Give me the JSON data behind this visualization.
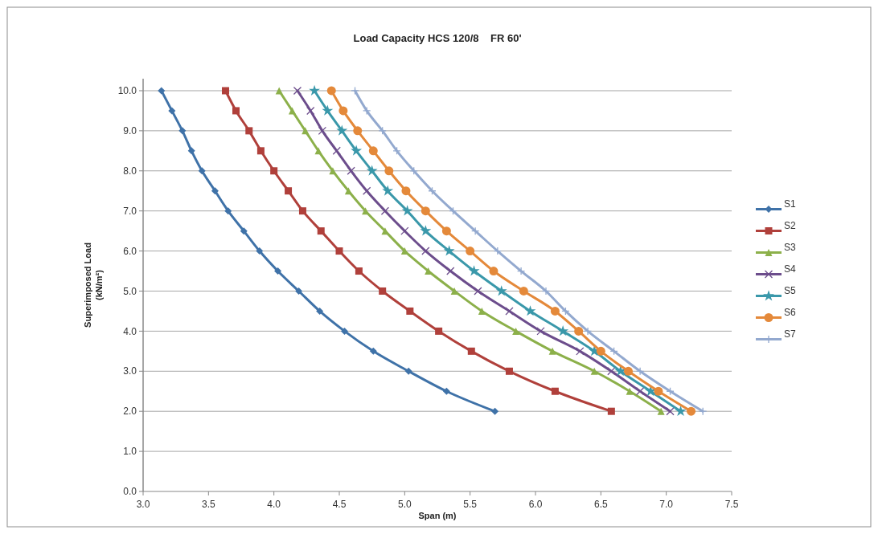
{
  "chart_data": {
    "type": "line",
    "title": "Load Capacity HCS 120/8    FR 60'",
    "xlabel": "Span (m)",
    "ylabel": "Superimposed Load\n(kN/m²)",
    "xlim": [
      3.0,
      7.5
    ],
    "xticks": [
      {
        "value": 3,
        "label": "3.0"
      },
      {
        "value": 3.5,
        "label": "3.5"
      },
      {
        "value": 4,
        "label": "4.0"
      },
      {
        "value": 4.5,
        "label": "4.5"
      },
      {
        "value": 5,
        "label": "5.0"
      },
      {
        "value": 5.5,
        "label": "5.5"
      },
      {
        "value": 6,
        "label": "6.0"
      },
      {
        "value": 6.5,
        "label": "6.5"
      },
      {
        "value": 7,
        "label": "7.0"
      },
      {
        "value": 7.5,
        "label": "7.5"
      }
    ],
    "ylim": [
      0,
      10.3
    ],
    "yticks": [
      {
        "value": 0,
        "label": "0.0"
      },
      {
        "value": 1,
        "label": "1.0"
      },
      {
        "value": 2,
        "label": "2.0"
      },
      {
        "value": 3,
        "label": "3.0"
      },
      {
        "value": 4,
        "label": "4.0"
      },
      {
        "value": 5,
        "label": "5.0"
      },
      {
        "value": 6,
        "label": "6.0"
      },
      {
        "value": 7,
        "label": "7.0"
      },
      {
        "value": 8,
        "label": "8.0"
      },
      {
        "value": 9,
        "label": "9.0"
      },
      {
        "value": 10,
        "label": "10.0"
      }
    ],
    "grid": "y",
    "legend": "right",
    "series": [
      {
        "name": "S1",
        "color": "#3f72a8",
        "marker": "diamond",
        "x": [
          3.14,
          3.22,
          3.3,
          3.37,
          3.45,
          3.55,
          3.65,
          3.77,
          3.89,
          4.03,
          4.19,
          4.35,
          4.54,
          4.76,
          5.03,
          5.32,
          5.69
        ],
        "values": [
          10,
          9.5,
          9,
          8.5,
          8,
          7.5,
          7,
          6.5,
          6,
          5.5,
          5,
          4.5,
          4,
          3.5,
          3,
          2.5,
          2
        ]
      },
      {
        "name": "S2",
        "color": "#b0403b",
        "marker": "square",
        "x": [
          3.63,
          3.71,
          3.81,
          3.9,
          4.0,
          4.11,
          4.22,
          4.36,
          4.5,
          4.65,
          4.83,
          5.04,
          5.26,
          5.51,
          5.8,
          6.15,
          6.58
        ],
        "values": [
          10,
          9.5,
          9,
          8.5,
          8,
          7.5,
          7,
          6.5,
          6,
          5.5,
          5,
          4.5,
          4,
          3.5,
          3,
          2.5,
          2
        ]
      },
      {
        "name": "S3",
        "color": "#8cb04a",
        "marker": "triangle",
        "x": [
          4.04,
          4.14,
          4.24,
          4.34,
          4.45,
          4.57,
          4.7,
          4.85,
          5.0,
          5.18,
          5.38,
          5.59,
          5.85,
          6.13,
          6.45,
          6.72,
          6.96
        ],
        "values": [
          10,
          9.5,
          9,
          8.5,
          8,
          7.5,
          7,
          6.5,
          6,
          5.5,
          5,
          4.5,
          4,
          3.5,
          3,
          2.5,
          2
        ]
      },
      {
        "name": "S4",
        "color": "#6c4d8c",
        "marker": "cross",
        "x": [
          4.18,
          4.28,
          4.37,
          4.48,
          4.59,
          4.71,
          4.85,
          5.0,
          5.16,
          5.35,
          5.56,
          5.8,
          6.04,
          6.34,
          6.58,
          6.8,
          7.03
        ],
        "values": [
          10,
          9.5,
          9,
          8.5,
          8,
          7.5,
          7,
          6.5,
          6,
          5.5,
          5,
          4.5,
          4,
          3.5,
          3,
          2.5,
          2
        ]
      },
      {
        "name": "S5",
        "color": "#3a98aa",
        "marker": "star",
        "x": [
          4.31,
          4.41,
          4.52,
          4.63,
          4.75,
          4.87,
          5.02,
          5.16,
          5.34,
          5.53,
          5.74,
          5.96,
          6.21,
          6.45,
          6.65,
          6.88,
          7.11
        ],
        "values": [
          10,
          9.5,
          9,
          8.5,
          8,
          7.5,
          7,
          6.5,
          6,
          5.5,
          5,
          4.5,
          4,
          3.5,
          3,
          2.5,
          2
        ]
      },
      {
        "name": "S6",
        "color": "#e4893a",
        "marker": "circle",
        "x": [
          4.44,
          4.53,
          4.64,
          4.76,
          4.88,
          5.01,
          5.16,
          5.32,
          5.5,
          5.68,
          5.91,
          6.15,
          6.33,
          6.5,
          6.71,
          6.94,
          7.19
        ],
        "values": [
          10,
          9.5,
          9,
          8.5,
          8,
          7.5,
          7,
          6.5,
          6,
          5.5,
          5,
          4.5,
          4,
          3.5,
          3,
          2.5,
          2
        ]
      },
      {
        "name": "S7",
        "color": "#93a9cf",
        "marker": "plus",
        "x": [
          4.62,
          4.71,
          4.83,
          4.94,
          5.07,
          5.21,
          5.37,
          5.54,
          5.71,
          5.89,
          6.08,
          6.23,
          6.4,
          6.6,
          6.8,
          7.03,
          7.28
        ],
        "values": [
          10,
          9.5,
          9,
          8.5,
          8,
          7.5,
          7,
          6.5,
          6,
          5.5,
          5,
          4.5,
          4,
          3.5,
          3,
          2.5,
          2
        ]
      }
    ]
  }
}
